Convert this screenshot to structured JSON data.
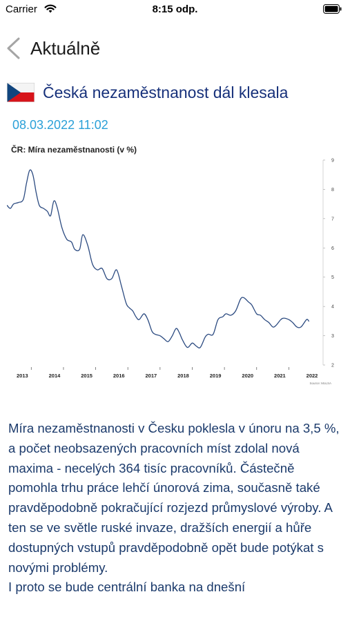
{
  "status_bar": {
    "carrier": "Carrier",
    "time": "8:15 odp."
  },
  "nav": {
    "back_label": "Aktuálně"
  },
  "article": {
    "flag_icon": "czech-flag-icon",
    "title": "Česká nezaměstnanost dál klesala",
    "date": "08.03.2022 11:02",
    "paragraphs": [
      "Míra nezaměstnanosti v Česku poklesla v únoru na 3,5 %, a počet neobsazených pracovních míst zdolal nová maxima - necelých 364 tisíc pracovníků. Částečně pomohla trhu práce lehčí únorová zima, současně také pravděpodobně pokračující rozjezd průmyslové výroby. A ten se ve světle ruské invaze, dražších energií a hůře dostupných vstupů pravděpodobně opět bude potýkat s novými problémy.",
      "I proto se bude centrální banka na dnešní"
    ]
  },
  "colors": {
    "title": "#16307a",
    "date": "#2aa0d8",
    "body": "#1b3a6b",
    "chart_line": "#2b4a80"
  },
  "chart_data": {
    "type": "line",
    "title": "ČR: Míra nezaměstnanosti (v %)",
    "xlabel": "",
    "ylabel": "",
    "x_ticks": [
      "2013",
      "2014",
      "2015",
      "2016",
      "2017",
      "2018",
      "2019",
      "2020",
      "2021",
      "2022"
    ],
    "y_ticks": [
      2,
      3,
      4,
      5,
      6,
      7,
      8,
      9
    ],
    "ylim": [
      2,
      9
    ],
    "xlim": [
      2013,
      2022.5
    ],
    "source": "Source: MoLSA",
    "grid": false,
    "y_axis_position": "right",
    "series": [
      {
        "x": [
          2012.75,
          2012.85,
          2012.95,
          2013.1,
          2013.25,
          2013.35,
          2013.45,
          2013.55,
          2013.65,
          2013.75,
          2013.88,
          2014.0,
          2014.1,
          2014.2,
          2014.3,
          2014.45,
          2014.6,
          2014.75,
          2014.85,
          2015.0,
          2015.1,
          2015.25,
          2015.4,
          2015.55,
          2015.7,
          2015.85,
          2016.0,
          2016.15,
          2016.3,
          2016.45,
          2016.55,
          2016.65,
          2016.75,
          2016.85,
          2017.0,
          2017.12,
          2017.25,
          2017.35,
          2017.5,
          2017.62,
          2017.75,
          2017.88,
          2018.0,
          2018.1,
          2018.2,
          2018.35,
          2018.5,
          2018.62,
          2018.75,
          2018.9,
          2019.0,
          2019.15,
          2019.3,
          2019.45,
          2019.55,
          2019.7,
          2019.85,
          2020.0,
          2020.1,
          2020.25,
          2020.35,
          2020.5,
          2020.62,
          2020.75,
          2020.88,
          2021.0,
          2021.1,
          2021.25,
          2021.35,
          2021.5,
          2021.62,
          2021.75,
          2021.88,
          2022.05,
          2022.12
        ],
        "y": [
          7.45,
          7.35,
          7.5,
          7.55,
          7.65,
          8.2,
          8.65,
          8.5,
          7.9,
          7.45,
          7.35,
          7.25,
          7.1,
          7.6,
          7.4,
          6.7,
          6.3,
          6.2,
          5.95,
          5.95,
          6.45,
          6.1,
          5.45,
          5.25,
          5.3,
          4.95,
          4.95,
          5.25,
          4.7,
          4.1,
          3.95,
          3.85,
          3.65,
          3.55,
          3.75,
          3.55,
          3.15,
          3.05,
          3.0,
          2.9,
          2.8,
          3.0,
          3.25,
          3.1,
          2.85,
          2.6,
          2.75,
          2.65,
          2.6,
          2.95,
          3.05,
          3.05,
          3.55,
          3.65,
          3.75,
          3.7,
          3.85,
          4.25,
          4.3,
          4.15,
          4.05,
          3.75,
          3.7,
          3.55,
          3.45,
          3.3,
          3.35,
          3.55,
          3.6,
          3.55,
          3.45,
          3.3,
          3.3,
          3.55,
          3.5
        ]
      }
    ]
  }
}
